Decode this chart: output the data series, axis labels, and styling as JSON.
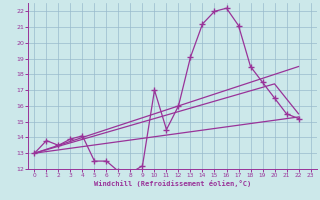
{
  "xlabel": "Windchill (Refroidissement éolien,°C)",
  "background_color": "#cce8ea",
  "line_color": "#993399",
  "grid_color": "#99bbcc",
  "xlim": [
    -0.5,
    23.5
  ],
  "ylim": [
    12,
    22.5
  ],
  "yticks": [
    12,
    13,
    14,
    15,
    16,
    17,
    18,
    19,
    20,
    21,
    22
  ],
  "xticks": [
    0,
    1,
    2,
    3,
    4,
    5,
    6,
    7,
    8,
    9,
    10,
    11,
    12,
    13,
    14,
    15,
    16,
    17,
    18,
    19,
    20,
    21,
    22,
    23
  ],
  "curve_x": [
    0,
    1,
    2,
    3,
    4,
    5,
    6,
    7,
    8,
    9,
    10,
    11,
    12,
    13,
    14,
    15,
    16,
    17,
    18,
    19,
    20,
    21,
    22
  ],
  "curve_y": [
    13.0,
    13.8,
    13.5,
    13.9,
    14.1,
    12.5,
    12.5,
    11.85,
    11.75,
    12.2,
    17.0,
    14.5,
    16.0,
    19.1,
    21.2,
    22.0,
    22.2,
    21.1,
    18.5,
    17.5,
    16.5,
    15.5,
    15.2
  ],
  "line1_x": [
    0,
    22
  ],
  "line1_y": [
    13.0,
    18.5
  ],
  "line2_x": [
    0,
    20,
    22
  ],
  "line2_y": [
    13.0,
    17.4,
    15.5
  ],
  "line3_x": [
    0,
    22
  ],
  "line3_y": [
    13.0,
    15.3
  ]
}
